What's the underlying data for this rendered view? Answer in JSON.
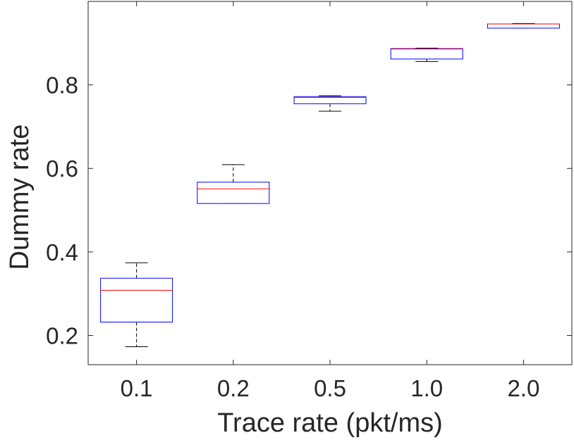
{
  "chart_data": {
    "type": "box",
    "title": "",
    "xlabel": "Trace rate (pkt/ms)",
    "ylabel": "Dummy rate",
    "ylim": [
      0.13,
      1.0
    ],
    "yticks": [
      0.2,
      0.4,
      0.6,
      0.8
    ],
    "ytick_labels": [
      "0.2",
      "0.4",
      "0.6",
      "0.8"
    ],
    "categories": [
      "0.1",
      "0.2",
      "0.5",
      "1.0",
      "2.0"
    ],
    "boxes": [
      {
        "category": "0.1",
        "whisker_low": 0.173,
        "q1": 0.232,
        "median": 0.308,
        "q3": 0.337,
        "whisker_high": 0.374
      },
      {
        "category": "0.2",
        "whisker_low": 0.516,
        "q1": 0.516,
        "median": 0.551,
        "q3": 0.567,
        "whisker_high": 0.609
      },
      {
        "category": "0.5",
        "whisker_low": 0.737,
        "q1": 0.755,
        "median": 0.77,
        "q3": 0.772,
        "whisker_high": 0.774
      },
      {
        "category": "1.0",
        "whisker_low": 0.856,
        "q1": 0.862,
        "median": 0.886,
        "q3": 0.887,
        "whisker_high": 0.888
      },
      {
        "category": "2.0",
        "whisker_low": 0.936,
        "q1": 0.936,
        "median": 0.946,
        "q3": 0.946,
        "whisker_high": 0.947
      }
    ],
    "grid": false,
    "colors": {
      "box": "#0000ff",
      "median": "#ff0000",
      "whisker": "#000000",
      "axis": "#262626"
    }
  }
}
